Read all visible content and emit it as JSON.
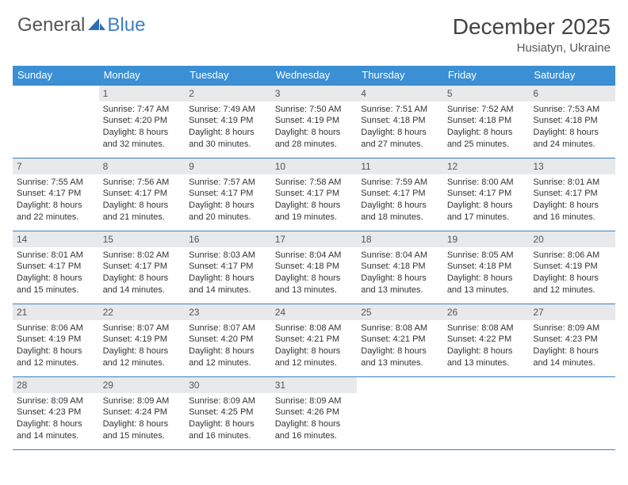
{
  "brand": {
    "name1": "General",
    "name2": "Blue"
  },
  "header": {
    "title": "December 2025",
    "location": "Husiatyn, Ukraine"
  },
  "colors": {
    "header_blue": "#3b8fd4",
    "accent_blue": "#3b7fc4",
    "row_bg": "#e7e9eb"
  },
  "weekdays": [
    "Sunday",
    "Monday",
    "Tuesday",
    "Wednesday",
    "Thursday",
    "Friday",
    "Saturday"
  ],
  "weeks": [
    [
      {
        "blank": true
      },
      {
        "num": "1",
        "sunrise": "7:47 AM",
        "sunset": "4:20 PM",
        "daylight": "8 hours and 32 minutes."
      },
      {
        "num": "2",
        "sunrise": "7:49 AM",
        "sunset": "4:19 PM",
        "daylight": "8 hours and 30 minutes."
      },
      {
        "num": "3",
        "sunrise": "7:50 AM",
        "sunset": "4:19 PM",
        "daylight": "8 hours and 28 minutes."
      },
      {
        "num": "4",
        "sunrise": "7:51 AM",
        "sunset": "4:18 PM",
        "daylight": "8 hours and 27 minutes."
      },
      {
        "num": "5",
        "sunrise": "7:52 AM",
        "sunset": "4:18 PM",
        "daylight": "8 hours and 25 minutes."
      },
      {
        "num": "6",
        "sunrise": "7:53 AM",
        "sunset": "4:18 PM",
        "daylight": "8 hours and 24 minutes."
      }
    ],
    [
      {
        "num": "7",
        "sunrise": "7:55 AM",
        "sunset": "4:17 PM",
        "daylight": "8 hours and 22 minutes."
      },
      {
        "num": "8",
        "sunrise": "7:56 AM",
        "sunset": "4:17 PM",
        "daylight": "8 hours and 21 minutes."
      },
      {
        "num": "9",
        "sunrise": "7:57 AM",
        "sunset": "4:17 PM",
        "daylight": "8 hours and 20 minutes."
      },
      {
        "num": "10",
        "sunrise": "7:58 AM",
        "sunset": "4:17 PM",
        "daylight": "8 hours and 19 minutes."
      },
      {
        "num": "11",
        "sunrise": "7:59 AM",
        "sunset": "4:17 PM",
        "daylight": "8 hours and 18 minutes."
      },
      {
        "num": "12",
        "sunrise": "8:00 AM",
        "sunset": "4:17 PM",
        "daylight": "8 hours and 17 minutes."
      },
      {
        "num": "13",
        "sunrise": "8:01 AM",
        "sunset": "4:17 PM",
        "daylight": "8 hours and 16 minutes."
      }
    ],
    [
      {
        "num": "14",
        "sunrise": "8:01 AM",
        "sunset": "4:17 PM",
        "daylight": "8 hours and 15 minutes."
      },
      {
        "num": "15",
        "sunrise": "8:02 AM",
        "sunset": "4:17 PM",
        "daylight": "8 hours and 14 minutes."
      },
      {
        "num": "16",
        "sunrise": "8:03 AM",
        "sunset": "4:17 PM",
        "daylight": "8 hours and 14 minutes."
      },
      {
        "num": "17",
        "sunrise": "8:04 AM",
        "sunset": "4:18 PM",
        "daylight": "8 hours and 13 minutes."
      },
      {
        "num": "18",
        "sunrise": "8:04 AM",
        "sunset": "4:18 PM",
        "daylight": "8 hours and 13 minutes."
      },
      {
        "num": "19",
        "sunrise": "8:05 AM",
        "sunset": "4:18 PM",
        "daylight": "8 hours and 13 minutes."
      },
      {
        "num": "20",
        "sunrise": "8:06 AM",
        "sunset": "4:19 PM",
        "daylight": "8 hours and 12 minutes."
      }
    ],
    [
      {
        "num": "21",
        "sunrise": "8:06 AM",
        "sunset": "4:19 PM",
        "daylight": "8 hours and 12 minutes."
      },
      {
        "num": "22",
        "sunrise": "8:07 AM",
        "sunset": "4:19 PM",
        "daylight": "8 hours and 12 minutes."
      },
      {
        "num": "23",
        "sunrise": "8:07 AM",
        "sunset": "4:20 PM",
        "daylight": "8 hours and 12 minutes."
      },
      {
        "num": "24",
        "sunrise": "8:08 AM",
        "sunset": "4:21 PM",
        "daylight": "8 hours and 12 minutes."
      },
      {
        "num": "25",
        "sunrise": "8:08 AM",
        "sunset": "4:21 PM",
        "daylight": "8 hours and 13 minutes."
      },
      {
        "num": "26",
        "sunrise": "8:08 AM",
        "sunset": "4:22 PM",
        "daylight": "8 hours and 13 minutes."
      },
      {
        "num": "27",
        "sunrise": "8:09 AM",
        "sunset": "4:23 PM",
        "daylight": "8 hours and 14 minutes."
      }
    ],
    [
      {
        "num": "28",
        "sunrise": "8:09 AM",
        "sunset": "4:23 PM",
        "daylight": "8 hours and 14 minutes."
      },
      {
        "num": "29",
        "sunrise": "8:09 AM",
        "sunset": "4:24 PM",
        "daylight": "8 hours and 15 minutes."
      },
      {
        "num": "30",
        "sunrise": "8:09 AM",
        "sunset": "4:25 PM",
        "daylight": "8 hours and 16 minutes."
      },
      {
        "num": "31",
        "sunrise": "8:09 AM",
        "sunset": "4:26 PM",
        "daylight": "8 hours and 16 minutes."
      },
      {
        "blank": true
      },
      {
        "blank": true
      },
      {
        "blank": true
      }
    ]
  ],
  "labels": {
    "sunrise": "Sunrise:",
    "sunset": "Sunset:",
    "daylight": "Daylight:"
  }
}
